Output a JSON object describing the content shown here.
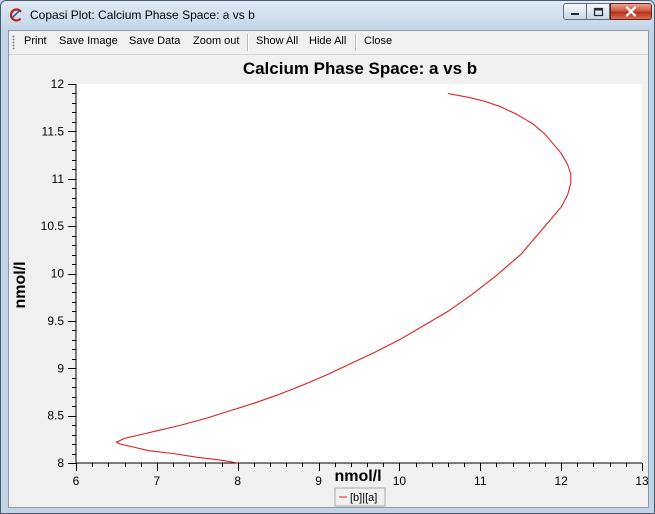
{
  "window": {
    "title": "Copasi Plot: Calcium Phase Space: a vs b"
  },
  "toolbar": {
    "print_label": "Print",
    "save_image_label": "Save Image",
    "save_data_label": "Save Data",
    "zoom_out_label": "Zoom out",
    "show_all_label": "Show All",
    "hide_all_label": "Hide All",
    "close_label": "Close"
  },
  "icons": {
    "app": "copasi-logo-icon",
    "minimize": "minimize-icon",
    "maximize": "maximize-icon",
    "close": "close-icon"
  },
  "colors": {
    "series": "#e0201c",
    "close_button": "#c5432b"
  },
  "chart_data": {
    "type": "line",
    "title": "Calcium Phase Space: a vs b",
    "xlabel": "nmol/l",
    "ylabel": "nmol/l",
    "xlim": [
      6,
      13
    ],
    "ylim": [
      8,
      12
    ],
    "xticks": [
      "6",
      "7",
      "8",
      "9",
      "10",
      "11",
      "12",
      "13"
    ],
    "yticks": [
      "8",
      "8.5",
      "9",
      "9.5",
      "10",
      "10.5",
      "11",
      "11.5",
      "12"
    ],
    "legend_position": "bottom",
    "series": [
      {
        "name": "[b]|[a]",
        "color": "#e0201c",
        "x": [
          8.0,
          7.8,
          7.5,
          7.2,
          6.9,
          6.7,
          6.55,
          6.5,
          6.6,
          6.8,
          7.0,
          7.3,
          7.6,
          7.9,
          8.2,
          8.5,
          8.8,
          9.1,
          9.4,
          9.7,
          10.0,
          10.3,
          10.6,
          10.9,
          11.2,
          11.5,
          11.7,
          11.85,
          12.0,
          12.08,
          12.12,
          12.12,
          12.08,
          12.0,
          11.9,
          11.8,
          11.65,
          11.45,
          11.25,
          11.05,
          10.85,
          10.6
        ],
        "y": [
          8.0,
          8.03,
          8.06,
          8.1,
          8.13,
          8.17,
          8.2,
          8.22,
          8.26,
          8.3,
          8.34,
          8.4,
          8.47,
          8.55,
          8.63,
          8.72,
          8.82,
          8.93,
          9.05,
          9.17,
          9.3,
          9.45,
          9.6,
          9.78,
          9.98,
          10.2,
          10.4,
          10.55,
          10.7,
          10.83,
          10.95,
          11.05,
          11.15,
          11.27,
          11.37,
          11.47,
          11.58,
          11.68,
          11.76,
          11.82,
          11.86,
          11.9
        ]
      }
    ]
  }
}
